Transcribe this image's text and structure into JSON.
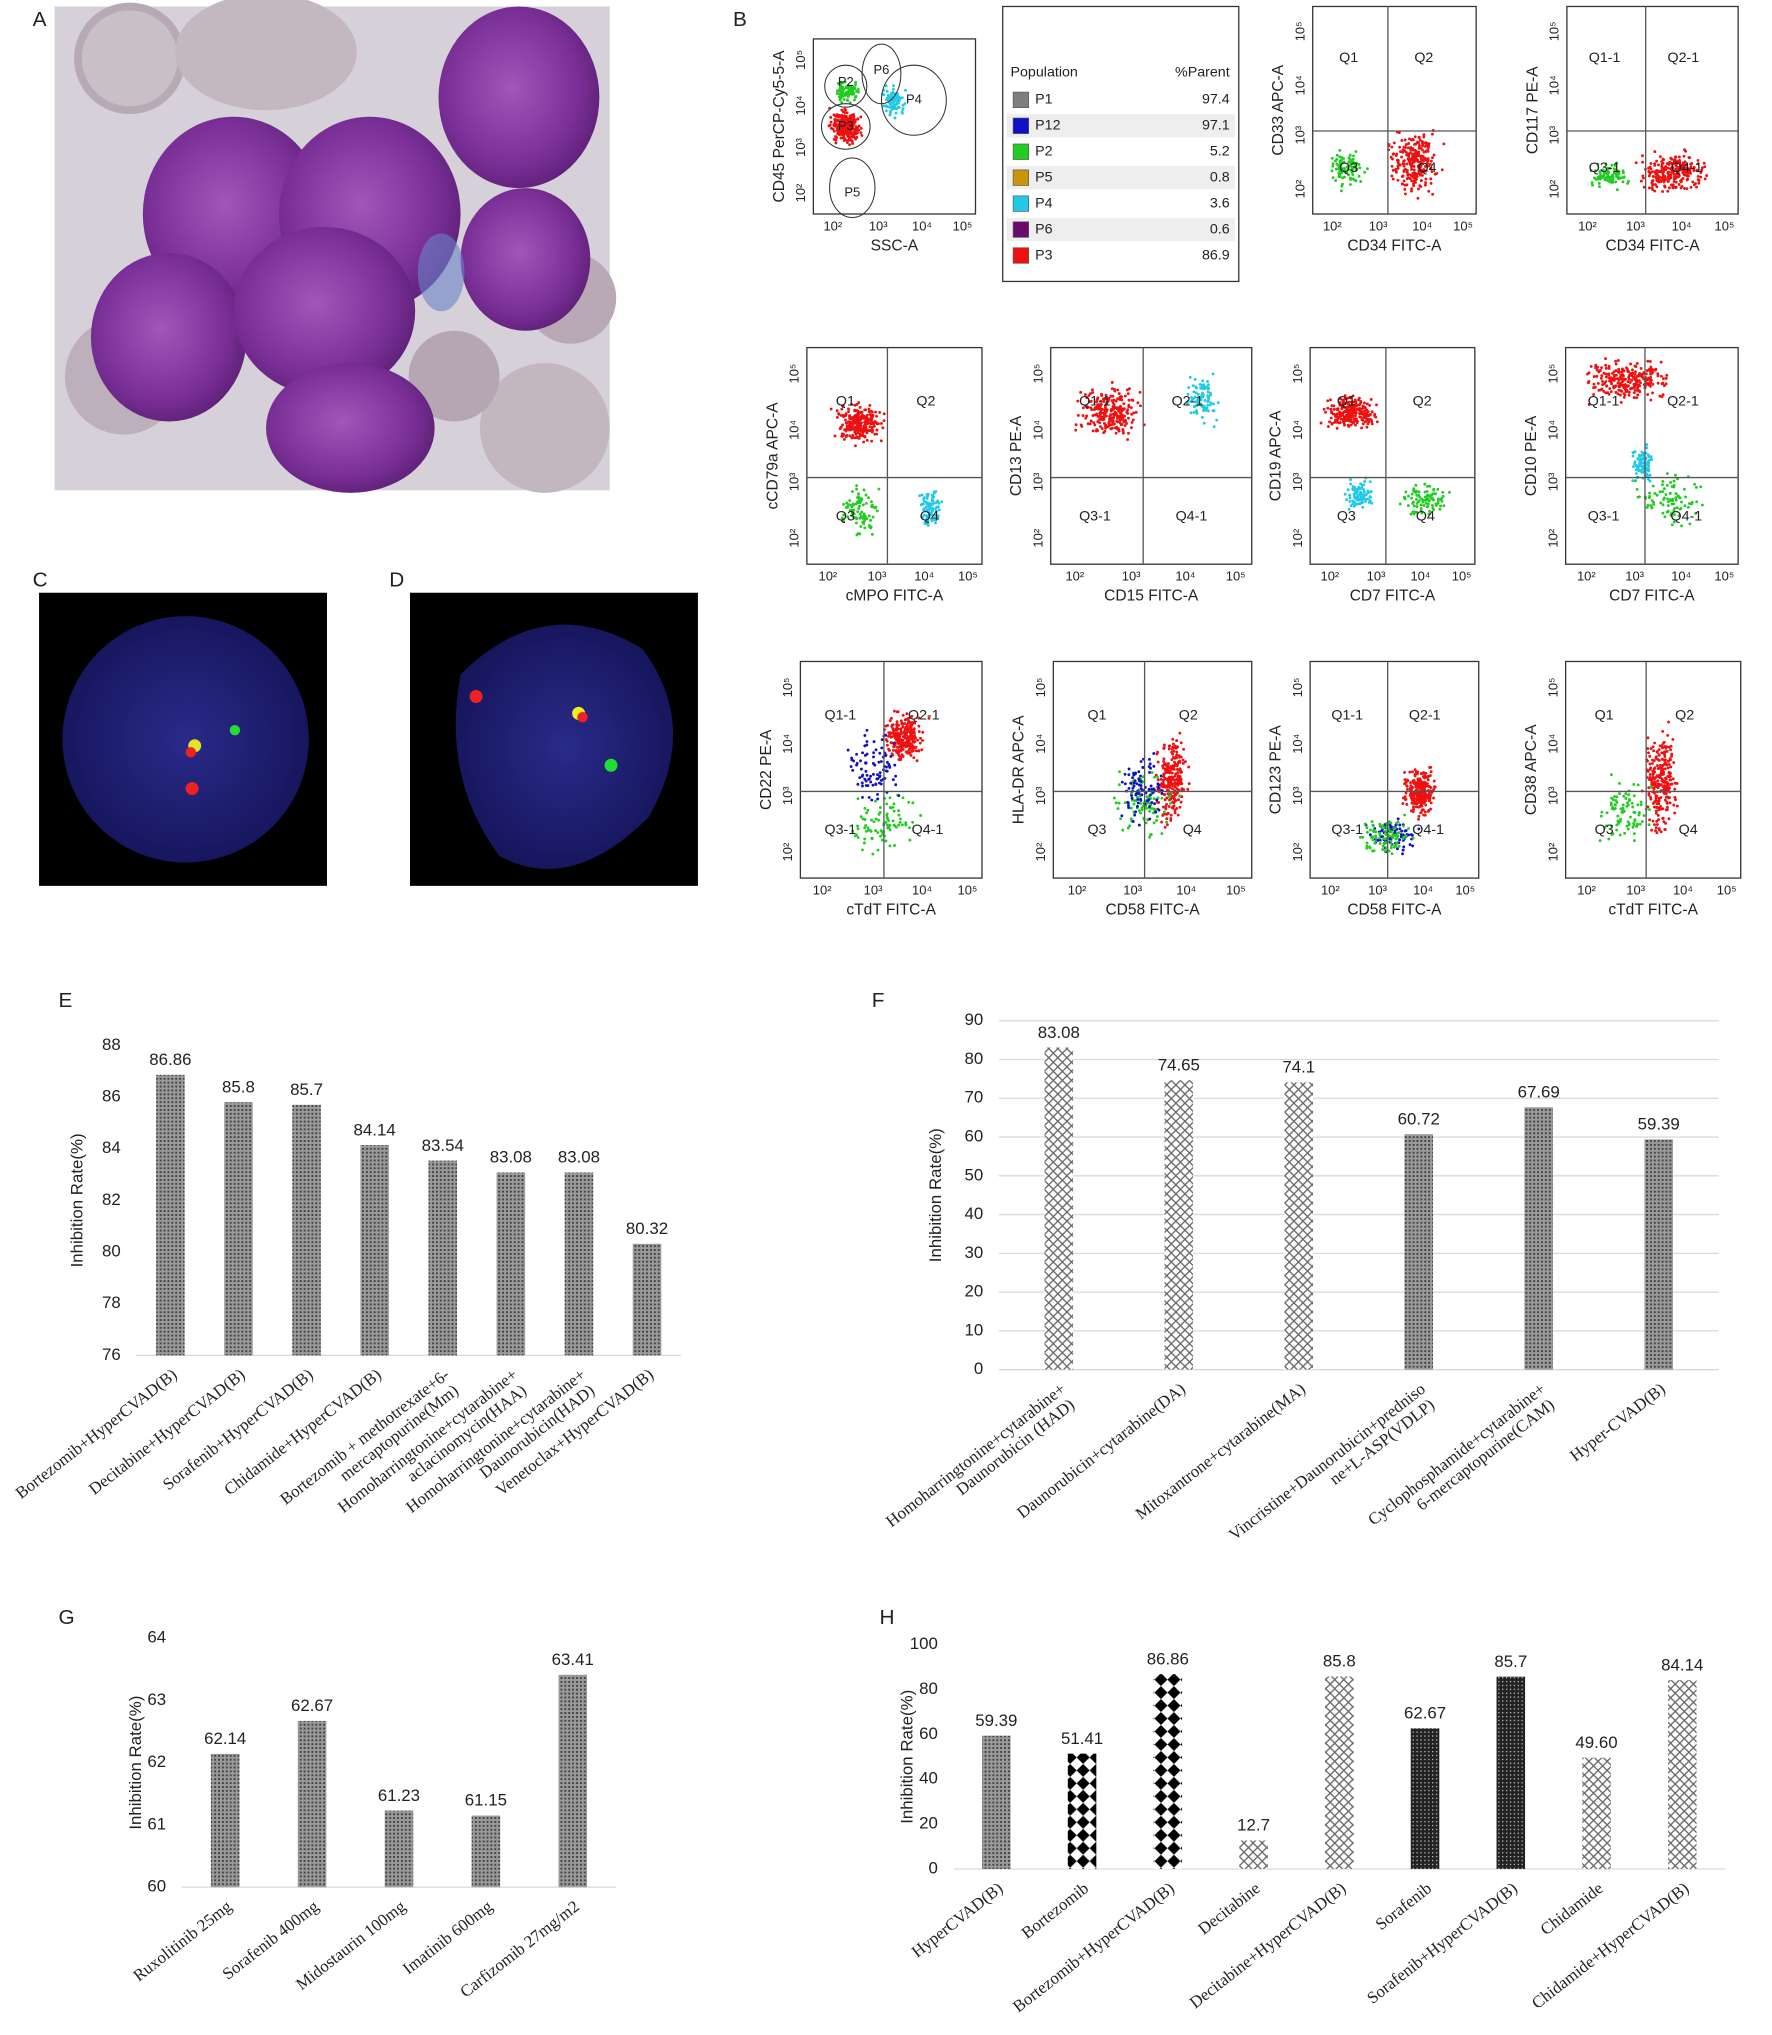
{
  "panels": [
    "A",
    "B",
    "C",
    "D"
  ],
  "flow": {
    "ticks": [
      "10²",
      "10³",
      "10⁴",
      "10⁵"
    ],
    "table": {
      "header": [
        "Population",
        "%Parent"
      ],
      "rows": [
        {
          "name": "P1",
          "value": "97.4",
          "color": "#7f7f7f"
        },
        {
          "name": "P12",
          "value": "97.1",
          "color": "#1010c8"
        },
        {
          "name": "P2",
          "value": "5.2",
          "color": "#22cc22"
        },
        {
          "name": "P5",
          "value": "0.8",
          "color": "#c8960a"
        },
        {
          "name": "P4",
          "value": "3.6",
          "color": "#22c8e8"
        },
        {
          "name": "P6",
          "value": "0.6",
          "color": "#6a0a6a"
        },
        {
          "name": "P3",
          "value": "86.9",
          "color": "#ee1111"
        }
      ]
    },
    "plots": [
      {
        "ylabel": "CD45 PerCP-Cy5-5-A",
        "xlabel": "SSC-A",
        "labels": [
          "P2",
          "P6",
          "P4",
          "P3",
          "P5"
        ]
      },
      {
        "ylabel": "CD33 APC-A",
        "xlabel": "CD34 FITC-A",
        "labels": [
          "Q1",
          "Q2",
          "Q3",
          "Q4"
        ]
      },
      {
        "ylabel": "CD117 PE-A",
        "xlabel": "CD34 FITC-A",
        "labels": [
          "Q1-1",
          "Q2-1",
          "Q3-1",
          "Q4-1"
        ]
      },
      {
        "ylabel": "cCD79a APC-A",
        "xlabel": "cMPO FITC-A",
        "labels": [
          "Q1",
          "Q2",
          "Q3",
          "Q4"
        ]
      },
      {
        "ylabel": "CD13 PE-A",
        "xlabel": "CD15 FITC-A",
        "labels": [
          "Q1-1",
          "Q2-1",
          "Q3-1",
          "Q4-1"
        ]
      },
      {
        "ylabel": "CD19 APC-A",
        "xlabel": "CD7 FITC-A",
        "labels": [
          "Q1",
          "Q2",
          "Q3",
          "Q4"
        ]
      },
      {
        "ylabel": "CD10 PE-A",
        "xlabel": "CD7 FITC-A",
        "labels": [
          "Q1-1",
          "Q2-1",
          "Q3-1",
          "Q4-1"
        ]
      },
      {
        "ylabel": "CD22 PE-A",
        "xlabel": "cTdT FITC-A",
        "labels": [
          "Q1-1",
          "Q2-1",
          "Q3-1",
          "Q4-1"
        ]
      },
      {
        "ylabel": "HLA-DR APC-A",
        "xlabel": "CD58 FITC-A",
        "labels": [
          "Q1",
          "Q2",
          "Q3",
          "Q4"
        ]
      },
      {
        "ylabel": "CD123 PE-A",
        "xlabel": "CD58 FITC-A",
        "labels": [
          "Q1-1",
          "Q2-1",
          "Q3-1",
          "Q4-1"
        ]
      },
      {
        "ylabel": "CD38 APC-A",
        "xlabel": "cTdT FITC-A",
        "labels": [
          "Q1",
          "Q2",
          "Q3",
          "Q4"
        ]
      }
    ]
  },
  "chart_data": [
    {
      "type": "bar",
      "title": "E",
      "ylabel": "Inhibition Rate(%)",
      "categories": [
        [
          "Bortezomib+HyperCVAD(B)"
        ],
        [
          "Decitabine+HyperCVAD(B)"
        ],
        [
          "Sorafenib+HyperCVAD(B)"
        ],
        [
          "Chidamide+HyperCVAD(B)"
        ],
        [
          "Bortezomib + methotrexate+6-",
          "mercaptopurine(Mm)"
        ],
        [
          "Homoharringtonine+cytarabine+",
          "aclacinomycin(HAA)"
        ],
        [
          "Homoharringtonine+cytarabine+",
          "Daunorubicin(HAD)"
        ],
        [
          "Venetoclax+HyperCVAD(B)"
        ]
      ],
      "values": [
        86.86,
        85.8,
        85.7,
        84.14,
        83.54,
        83.08,
        83.08,
        80.32
      ],
      "patterns": [
        "dots",
        "dots",
        "dots",
        "dots",
        "dots",
        "dots",
        "dots",
        "dots"
      ],
      "ylim": [
        76,
        88
      ],
      "yticks": [
        76,
        78,
        80,
        82,
        84,
        86,
        88
      ],
      "grid": false
    },
    {
      "type": "bar",
      "title": "F",
      "ylabel": "Inhibition Rate(%)",
      "categories": [
        [
          "Homoharringtonine+cytarabine+",
          "Daunorubicin (HAD)"
        ],
        [
          "Daunorubicin+cytarabine(DA)"
        ],
        [
          "Mitoxantrone+cytarabine(MA)"
        ],
        [
          "Vincristine+Daunorubicin+predniso",
          "ne+L-ASP(VDLP)"
        ],
        [
          "Cyclophosphamide+cytarabine+",
          "6-mercaptopurine(CAM)"
        ],
        [
          "Hyper-CVAD(B)"
        ]
      ],
      "values": [
        83.08,
        74.65,
        74.1,
        60.72,
        67.69,
        59.39
      ],
      "patterns": [
        "cross",
        "cross",
        "cross",
        "dots",
        "dots",
        "dots"
      ],
      "ylim": [
        0,
        90
      ],
      "yticks": [
        0,
        10,
        20,
        30,
        40,
        50,
        60,
        70,
        80,
        90
      ],
      "grid": true
    },
    {
      "type": "bar",
      "title": "G",
      "ylabel": "Inhibition Rate(%)",
      "categories": [
        [
          "Ruxolitinib 25mg"
        ],
        [
          "Sorafenib 400mg"
        ],
        [
          "Midostaurin 100mg"
        ],
        [
          "Imatinib 600mg"
        ],
        [
          "Carfizomib 27mg/m2"
        ]
      ],
      "values": [
        62.14,
        62.67,
        61.23,
        61.15,
        63.41
      ],
      "patterns": [
        "dots",
        "dots",
        "dots",
        "dots",
        "dots"
      ],
      "ylim": [
        60,
        64
      ],
      "yticks": [
        60,
        61,
        62,
        63,
        64
      ],
      "grid": false
    },
    {
      "type": "bar",
      "title": "H",
      "ylabel": "Inhibition Rate(%)",
      "categories": [
        [
          "HyperCVAD(B)"
        ],
        [
          "Bortezomib"
        ],
        [
          "Bortezomib+HyperCVAD(B)"
        ],
        [
          "Decitabine"
        ],
        [
          "Decitabine+HyperCVAD(B)"
        ],
        [
          "Sorafenib"
        ],
        [
          "Sorafenib+HyperCVAD(B)"
        ],
        [
          "Chidamide"
        ],
        [
          "Chidamide+HyperCVAD(B)"
        ]
      ],
      "values": [
        59.39,
        51.41,
        86.86,
        12.7,
        85.8,
        62.67,
        85.7,
        49.6,
        84.14
      ],
      "value_labels": [
        "59.39",
        "51.41",
        "86.86",
        "12.7",
        "85.8",
        "62.67",
        "85.7",
        "49.60",
        "84.14"
      ],
      "patterns": [
        "dots",
        "diamond",
        "diamond",
        "cross",
        "cross",
        "dense",
        "dense",
        "cross",
        "cross"
      ],
      "ylim": [
        0,
        100
      ],
      "yticks": [
        0,
        20,
        40,
        60,
        80,
        100
      ],
      "grid": false
    }
  ]
}
